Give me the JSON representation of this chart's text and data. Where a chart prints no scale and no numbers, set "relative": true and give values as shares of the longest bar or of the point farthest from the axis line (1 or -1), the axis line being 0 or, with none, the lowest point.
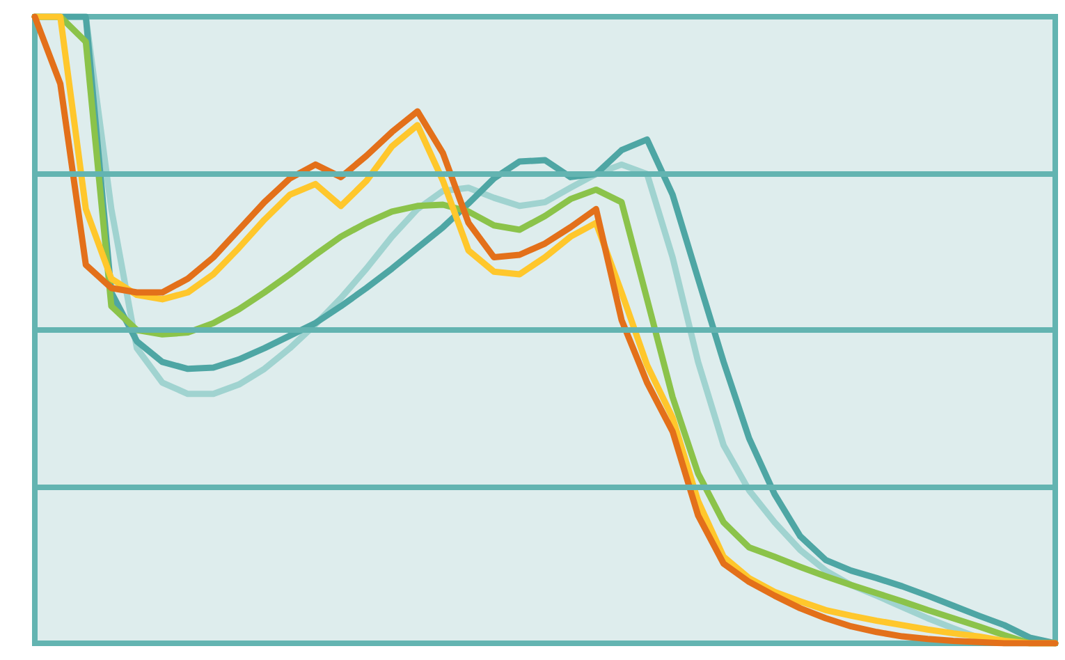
{
  "chart_data": {
    "type": "line",
    "relative": true,
    "ref_lines": [
      {
        "axis": "y",
        "value": 0.25,
        "color": "#63b4b1"
      },
      {
        "axis": "y",
        "value": 0.5,
        "color": "#63b4b1"
      },
      {
        "axis": "y",
        "value": 0.75,
        "color": "#63b4b1"
      }
    ],
    "marker": "none",
    "line_style": "solid",
    "categories": [
      null,
      null,
      null,
      null,
      null,
      null,
      null,
      null,
      null,
      null,
      null,
      null,
      null,
      null,
      null,
      null,
      null,
      null,
      null,
      null,
      null,
      null,
      null,
      null,
      null,
      null,
      null,
      null,
      null,
      null,
      null,
      null,
      null,
      null,
      null,
      null,
      null,
      null,
      null,
      null,
      null
    ],
    "series": [
      {
        "color": "#a0d3d0",
        "values": [
          1,
          1,
          1,
          0.693,
          0.471,
          0.416,
          0.398,
          0.398,
          0.413,
          0.438,
          0.471,
          0.509,
          0.551,
          0.598,
          0.649,
          0.693,
          0.722,
          0.727,
          0.711,
          0.698,
          0.704,
          0.727,
          0.749,
          0.764,
          0.749,
          0.616,
          0.449,
          0.316,
          0.244,
          0.193,
          0.149,
          0.116,
          0.093,
          0.076,
          0.058,
          0.04,
          0.024,
          0.009,
          0,
          0,
          0
        ]
      },
      {
        "color": "#4ea6a4",
        "values": [
          1,
          1,
          1,
          0.56,
          0.482,
          0.449,
          0.438,
          0.44,
          0.453,
          0.471,
          0.491,
          0.511,
          0.538,
          0.567,
          0.598,
          0.631,
          0.664,
          0.702,
          0.742,
          0.769,
          0.771,
          0.744,
          0.749,
          0.787,
          0.804,
          0.716,
          0.582,
          0.449,
          0.327,
          0.238,
          0.171,
          0.133,
          0.116,
          0.104,
          0.091,
          0.076,
          0.06,
          0.044,
          0.029,
          0.009,
          0
        ]
      },
      {
        "color": "#8bc34a",
        "values": [
          1,
          1,
          0.96,
          0.538,
          0.5,
          0.493,
          0.496,
          0.511,
          0.533,
          0.56,
          0.589,
          0.62,
          0.649,
          0.671,
          0.689,
          0.698,
          0.7,
          0.689,
          0.667,
          0.66,
          0.682,
          0.709,
          0.724,
          0.704,
          0.549,
          0.393,
          0.271,
          0.193,
          0.153,
          0.138,
          0.122,
          0.107,
          0.093,
          0.08,
          0.067,
          0.053,
          0.04,
          0.027,
          0.013,
          0,
          0
        ]
      },
      {
        "color": "#ffc72c",
        "values": [
          1,
          1,
          0.693,
          0.582,
          0.556,
          0.549,
          0.56,
          0.589,
          0.631,
          0.676,
          0.716,
          0.733,
          0.698,
          0.738,
          0.793,
          0.827,
          0.738,
          0.627,
          0.593,
          0.589,
          0.616,
          0.649,
          0.671,
          0.56,
          0.444,
          0.36,
          0.227,
          0.138,
          0.104,
          0.082,
          0.067,
          0.053,
          0.044,
          0.036,
          0.029,
          0.022,
          0.016,
          0.011,
          0.004,
          0,
          0
        ]
      },
      {
        "color": "#e3701a",
        "values": [
          1,
          0.893,
          0.604,
          0.567,
          0.56,
          0.56,
          0.582,
          0.616,
          0.66,
          0.704,
          0.742,
          0.764,
          0.744,
          0.778,
          0.816,
          0.849,
          0.782,
          0.671,
          0.616,
          0.62,
          0.638,
          0.664,
          0.693,
          0.516,
          0.416,
          0.338,
          0.204,
          0.127,
          0.098,
          0.076,
          0.056,
          0.04,
          0.027,
          0.018,
          0.011,
          0.007,
          0.004,
          0.002,
          0,
          0,
          0
        ]
      }
    ]
  }
}
